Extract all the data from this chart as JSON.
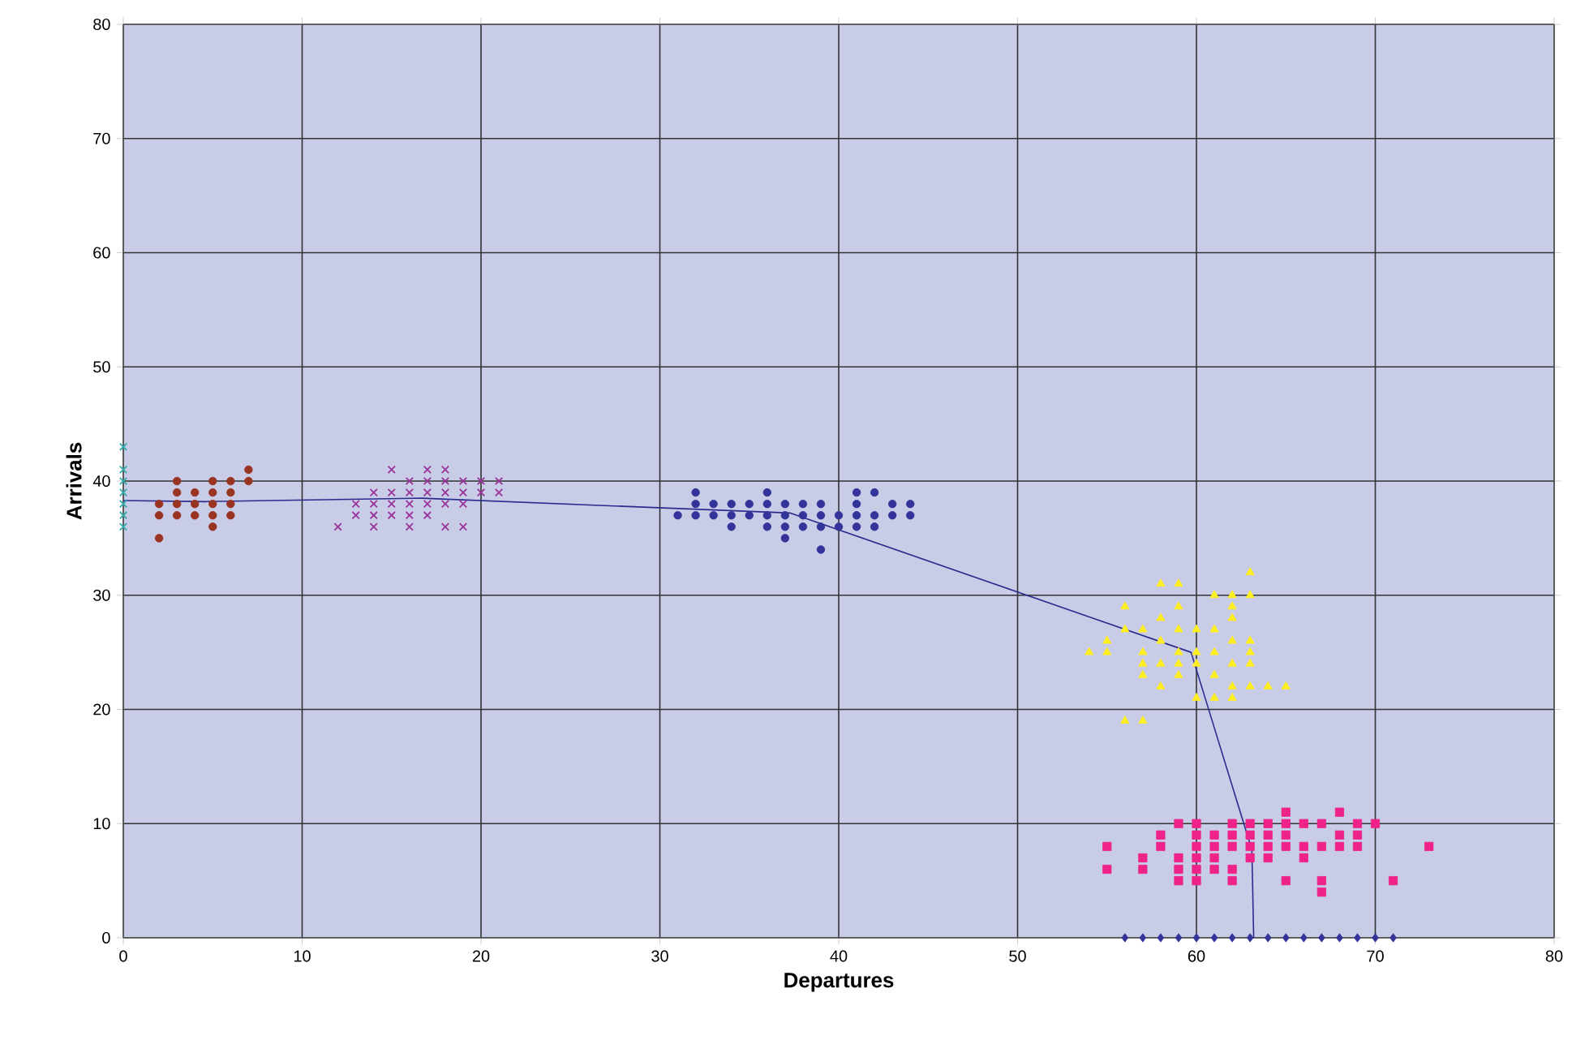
{
  "chart_data": {
    "type": "scatter",
    "xlabel": "Departures",
    "ylabel": "Arrivals",
    "xlim": [
      0,
      80
    ],
    "ylim": [
      0,
      80
    ],
    "xticks": [
      0,
      10,
      20,
      30,
      40,
      50,
      60,
      70,
      80
    ],
    "yticks": [
      0,
      10,
      20,
      30,
      40,
      50,
      60,
      70,
      80
    ],
    "grid": true,
    "series": [
      {
        "color": "#33aaaa",
        "marker": "cross",
        "x": [
          0,
          0,
          0,
          0,
          0,
          0,
          0
        ],
        "values": [
          43,
          41,
          40,
          39,
          38,
          37,
          36
        ]
      },
      {
        "color": "#993322",
        "marker": "circle",
        "x": [
          2,
          2,
          2,
          3,
          3,
          3,
          3,
          4,
          4,
          4,
          5,
          5,
          5,
          5,
          5,
          6,
          6,
          6,
          6,
          7,
          7
        ],
        "values": [
          38,
          37,
          35,
          40,
          39,
          38,
          37,
          39,
          38,
          37,
          40,
          39,
          38,
          37,
          36,
          40,
          39,
          38,
          37,
          41,
          40
        ]
      },
      {
        "color": "#993399",
        "marker": "cross",
        "x": [
          12,
          13,
          13,
          14,
          14,
          14,
          14,
          15,
          15,
          15,
          15,
          16,
          16,
          16,
          16,
          16,
          17,
          17,
          17,
          17,
          17,
          18,
          18,
          18,
          18,
          18,
          19,
          19,
          19,
          19,
          20,
          20,
          21,
          21
        ],
        "values": [
          36,
          38,
          37,
          39,
          38,
          37,
          36,
          41,
          39,
          38,
          37,
          40,
          39,
          38,
          37,
          36,
          41,
          40,
          39,
          38,
          37,
          41,
          40,
          39,
          38,
          36,
          40,
          39,
          38,
          36,
          40,
          39,
          40,
          39
        ]
      },
      {
        "color": "#333399",
        "marker": "circle",
        "x": [
          31,
          32,
          32,
          32,
          33,
          33,
          34,
          34,
          34,
          35,
          35,
          36,
          36,
          36,
          36,
          37,
          37,
          37,
          37,
          38,
          38,
          38,
          39,
          39,
          39,
          39,
          40,
          40,
          41,
          41,
          41,
          41,
          42,
          42,
          42,
          43,
          43,
          44,
          44
        ],
        "values": [
          37,
          39,
          38,
          37,
          38,
          37,
          38,
          37,
          36,
          38,
          37,
          39,
          38,
          37,
          36,
          38,
          37,
          36,
          35,
          38,
          37,
          36,
          38,
          37,
          36,
          34,
          37,
          36,
          39,
          38,
          37,
          36,
          39,
          37,
          36,
          38,
          37,
          38,
          37
        ]
      },
      {
        "color": "#ffee22",
        "marker": "triangle",
        "x": [
          54,
          55,
          55,
          56,
          56,
          56,
          57,
          57,
          57,
          57,
          57,
          58,
          58,
          58,
          58,
          58,
          59,
          59,
          59,
          59,
          59,
          59,
          60,
          60,
          60,
          60,
          61,
          61,
          61,
          61,
          61,
          62,
          62,
          62,
          62,
          62,
          62,
          62,
          63,
          63,
          63,
          63,
          63,
          63,
          64,
          65
        ],
        "values": [
          25,
          26,
          25,
          29,
          27,
          19,
          27,
          25,
          24,
          23,
          19,
          31,
          28,
          26,
          24,
          22,
          31,
          29,
          27,
          25,
          24,
          23,
          27,
          25,
          24,
          21,
          30,
          27,
          25,
          23,
          21,
          30,
          29,
          28,
          26,
          24,
          22,
          21,
          32,
          30,
          26,
          25,
          24,
          22,
          22,
          22
        ]
      },
      {
        "color": "#ee2288",
        "marker": "square",
        "x": [
          55,
          55,
          57,
          57,
          58,
          58,
          59,
          59,
          59,
          59,
          60,
          60,
          60,
          60,
          60,
          60,
          61,
          61,
          61,
          61,
          62,
          62,
          62,
          62,
          62,
          63,
          63,
          63,
          63,
          64,
          64,
          64,
          64,
          65,
          65,
          65,
          65,
          65,
          66,
          66,
          66,
          67,
          67,
          67,
          67,
          68,
          68,
          68,
          69,
          69,
          69,
          70,
          71,
          73
        ],
        "values": [
          8,
          6,
          7,
          6,
          9,
          8,
          10,
          7,
          6,
          5,
          10,
          9,
          8,
          7,
          6,
          5,
          9,
          8,
          7,
          6,
          10,
          9,
          8,
          6,
          5,
          10,
          9,
          8,
          7,
          10,
          9,
          8,
          7,
          11,
          10,
          9,
          8,
          5,
          10,
          8,
          7,
          10,
          8,
          5,
          4,
          11,
          9,
          8,
          10,
          9,
          8,
          10,
          5,
          8
        ]
      },
      {
        "color": "#333399",
        "marker": "diamond",
        "x": [
          56,
          57,
          58,
          59,
          60,
          61,
          62,
          63,
          64,
          65,
          66,
          67,
          68,
          69,
          70,
          71
        ],
        "values": [
          0,
          0,
          0,
          0,
          0,
          0,
          0,
          0,
          0,
          0,
          0,
          0,
          0,
          0,
          0,
          0
        ]
      },
      {
        "type": "line",
        "color": "#2b2b8f",
        "marker": "none",
        "x": [
          0,
          4.6,
          16.7,
          37.3,
          59.7,
          63.1,
          63.2
        ],
        "values": [
          38.3,
          38.2,
          38.5,
          37.2,
          25,
          7.7,
          0
        ]
      }
    ]
  }
}
